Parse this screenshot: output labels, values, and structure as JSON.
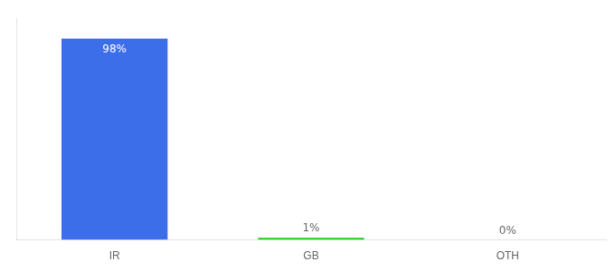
{
  "chart_data": {
    "type": "bar",
    "categories": [
      "IR",
      "GB",
      "OTH"
    ],
    "values": [
      98,
      1,
      0
    ],
    "value_labels": [
      "98%",
      "1%",
      "0%"
    ],
    "colors": [
      "#3d6eea",
      "#22cc22",
      "#3d6eea"
    ],
    "ylim": [
      0,
      108
    ],
    "grid": false,
    "data_labels": true,
    "tick_labels": "x"
  }
}
